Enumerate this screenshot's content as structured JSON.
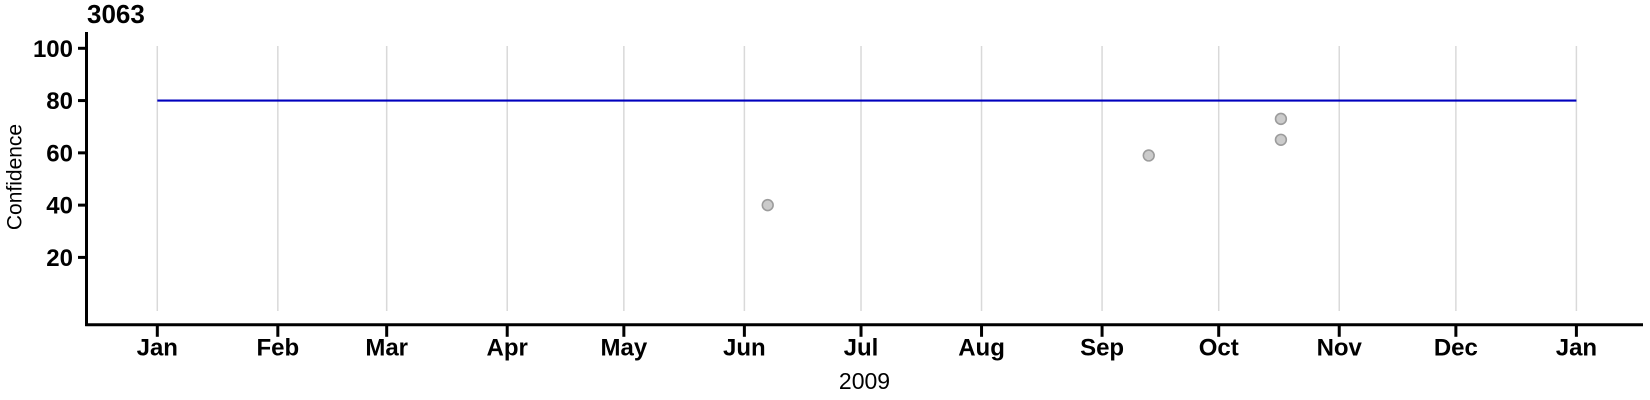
{
  "chart_data": {
    "type": "scatter",
    "title": "3063",
    "ylabel": "Confidence",
    "xlabel": "2009",
    "legend": "none",
    "grid": "vertical-month-gridlines",
    "y_ticks": [
      100,
      80,
      60,
      40,
      20
    ],
    "y_axis_range_ticks": [
      20,
      100
    ],
    "x_ticks": [
      {
        "label": "Jan",
        "day": 0
      },
      {
        "label": "Feb",
        "day": 31
      },
      {
        "label": "Mar",
        "day": 59
      },
      {
        "label": "Apr",
        "day": 90
      },
      {
        "label": "May",
        "day": 120
      },
      {
        "label": "Jun",
        "day": 151
      },
      {
        "label": "Jul",
        "day": 181
      },
      {
        "label": "Aug",
        "day": 212
      },
      {
        "label": "Sep",
        "day": 243
      },
      {
        "label": "Oct",
        "day": 273
      },
      {
        "label": "Nov",
        "day": 304
      },
      {
        "label": "Dec",
        "day": 334
      },
      {
        "label": "Jan",
        "day": 365
      }
    ],
    "points": [
      {
        "date": "2009-06-07",
        "day": 157,
        "confidence": 40
      },
      {
        "date": "2009-09-13",
        "day": 255,
        "confidence": 59
      },
      {
        "date": "2009-10-17",
        "day": 289,
        "confidence": 73
      },
      {
        "date": "2009-10-17",
        "day": 289,
        "confidence": 65
      }
    ],
    "reference_line": {
      "confidence": 80,
      "from_day": 0,
      "to_day": 365
    },
    "colors": {
      "reference_line": "#0000BE",
      "point_fill": "#CBCBCB",
      "point_stroke": "#9C9C9C",
      "gridline": "#D9D9D9",
      "axis": "#000000",
      "text": "#000000"
    }
  }
}
